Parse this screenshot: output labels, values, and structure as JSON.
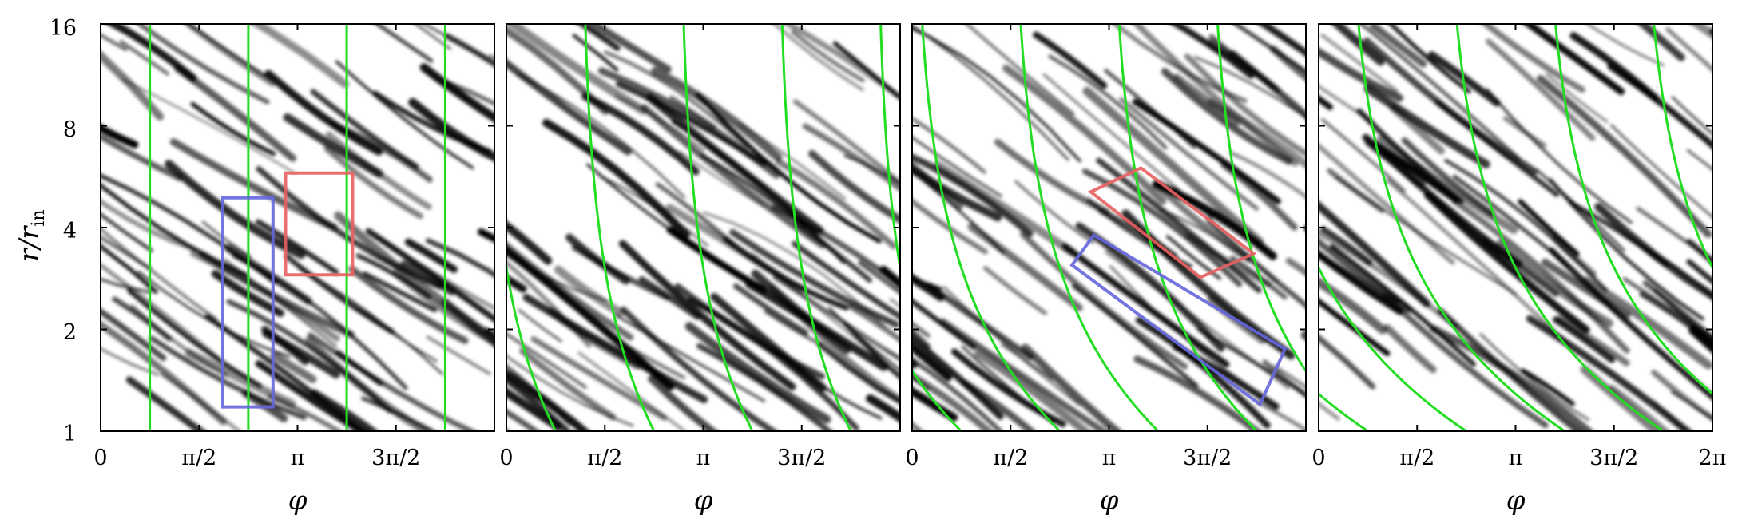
{
  "chart_data": {
    "type": "heatmap",
    "panel_count": 4,
    "x": {
      "label": "φ",
      "range": [
        0,
        6.2832
      ],
      "ticks": [
        0,
        1.5708,
        3.1416,
        4.7124,
        6.2832
      ],
      "tick_labels": [
        "0",
        "π/2",
        "π",
        "3π/2",
        "2π"
      ]
    },
    "y": {
      "label": "r/r",
      "label_subscript": "in",
      "scale": "log2",
      "range": [
        1,
        16
      ],
      "ticks": [
        1,
        2,
        4,
        8,
        16
      ],
      "tick_labels": [
        "1",
        "2",
        "4",
        "8",
        "16"
      ]
    },
    "colors": {
      "streak": "#000000",
      "background": "#ffffff",
      "guide_lines": "#22dd22",
      "box_red": "#e86060",
      "box_blue": "#6666dd"
    },
    "panels": [
      {
        "index": 1,
        "guide_offsets": [
          0.785,
          2.356,
          3.927,
          5.498
        ],
        "guide_shear": 0,
        "boxes": [
          {
            "color": "red",
            "points": [
              [
                2.95,
                5.8
              ],
              [
                4.02,
                5.8
              ],
              [
                4.02,
                2.9
              ],
              [
                2.95,
                2.9
              ]
            ]
          },
          {
            "color": "blue",
            "points": [
              [
                1.95,
                4.9
              ],
              [
                2.75,
                4.9
              ],
              [
                2.75,
                1.18
              ],
              [
                1.95,
                1.18
              ]
            ]
          }
        ]
      },
      {
        "index": 2,
        "guide_offsets": [
          0.785,
          2.356,
          3.927,
          5.498
        ],
        "guide_shear": 0.9,
        "boxes": []
      },
      {
        "index": 3,
        "guide_offsets": [
          0.785,
          2.356,
          3.927,
          5.498
        ],
        "guide_shear": 1.8,
        "boxes": [
          {
            "color": "red",
            "points": [
              [
                2.85,
                5.1
              ],
              [
                3.65,
                6.0
              ],
              [
                5.45,
                3.35
              ],
              [
                4.6,
                2.85
              ]
            ]
          },
          {
            "color": "blue",
            "points": [
              [
                2.55,
                3.1
              ],
              [
                2.9,
                3.8
              ],
              [
                5.95,
                1.75
              ],
              [
                5.55,
                1.2
              ]
            ]
          }
        ]
      },
      {
        "index": 4,
        "guide_offsets": [
          0.785,
          2.356,
          3.927,
          5.498
        ],
        "guide_shear": 2.7,
        "boxes": []
      }
    ]
  }
}
